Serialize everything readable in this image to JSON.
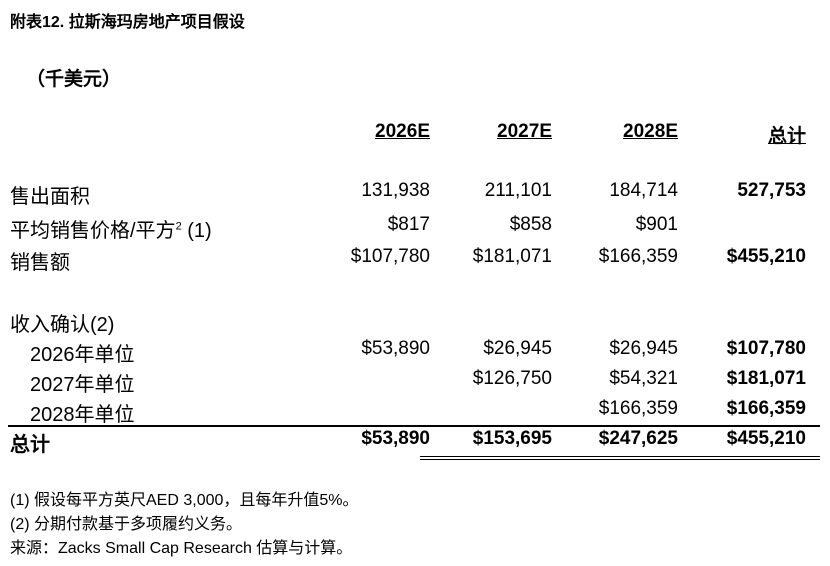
{
  "title": "附表12. 拉斯海玛房地产项目假设",
  "unit": "（千美元）",
  "columns": [
    "2026E",
    "2027E",
    "2028E",
    "总计"
  ],
  "rows": {
    "area": {
      "label": "售出面积",
      "values": [
        "131,938",
        "211,101",
        "184,714",
        "527,753"
      ]
    },
    "price": {
      "label": "平均销售价格/平方",
      "sup": "2",
      "suffix": " (1)",
      "values": [
        "$817",
        "$858",
        "$901",
        ""
      ]
    },
    "sales": {
      "label": "销售额",
      "values": [
        "$107,780",
        "$181,071",
        "$166,359",
        "$455,210"
      ]
    },
    "rev_header": {
      "label": "收入确认(2)"
    },
    "u2026": {
      "label": "2026年单位",
      "values": [
        "$53,890",
        "$26,945",
        "$26,945",
        "$107,780"
      ]
    },
    "u2027": {
      "label": "2027年单位",
      "values": [
        "",
        "$126,750",
        "$54,321",
        "$181,071"
      ]
    },
    "u2028": {
      "label": "2028年单位",
      "values": [
        "",
        "",
        "$166,359",
        "$166,359"
      ]
    },
    "total": {
      "label": "总计",
      "values": [
        "$53,890",
        "$153,695",
        "$247,625",
        "$455,210"
      ]
    }
  },
  "notes": [
    "(1) 假设每平方英尺AED 3,000，且每年升值5%。",
    "(2) 分期付款基于多项履约义务。",
    "来源：Zacks Small Cap Research 估算与计算。"
  ]
}
